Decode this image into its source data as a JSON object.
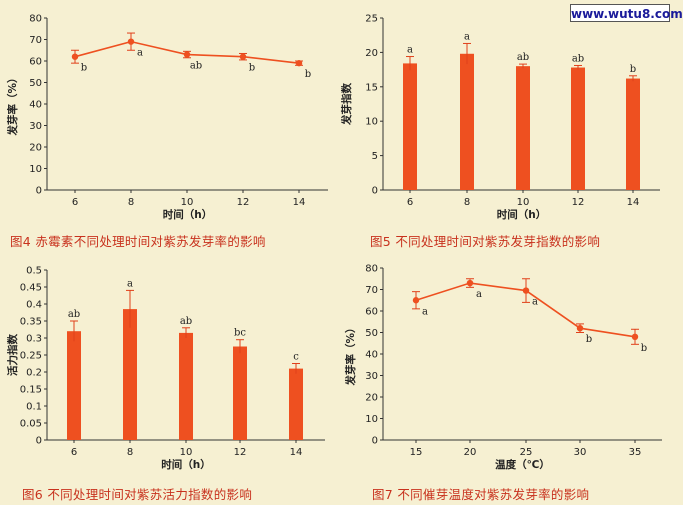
{
  "watermark": "www.wutu8.com",
  "captions": {
    "fig4": "图4  赤霉素不同处理时间对紫苏发芽率的影响",
    "fig5": "图5  不同处理时间对紫苏发芽指数的影响",
    "fig6": "图6  不同处理时间对紫苏活力指数的影响",
    "fig7": "图7  不同催芽温度对紫苏发芽率的影响"
  },
  "chart_data": [
    {
      "id": "fig4",
      "type": "line",
      "x": [
        6,
        8,
        10,
        12,
        14
      ],
      "y": [
        62,
        69,
        63,
        62,
        59
      ],
      "err": [
        3,
        4,
        1.5,
        1.5,
        1
      ],
      "sig": [
        "b",
        "a",
        "ab",
        "b",
        "b"
      ],
      "xlabel": "时间（h）",
      "ylabel": "发芽率（%）",
      "ylim": [
        0,
        80
      ],
      "yticks": [
        "0",
        "10",
        "20",
        "30",
        "40",
        "50",
        "60",
        "70",
        "80"
      ],
      "xticks": [
        "6",
        "8",
        "10",
        "12",
        "14"
      ],
      "colors": {
        "series": "#ee5020"
      }
    },
    {
      "id": "fig5",
      "type": "bar",
      "categories": [
        "6",
        "8",
        "10",
        "12",
        "14"
      ],
      "values": [
        18.4,
        19.8,
        18.0,
        17.8,
        16.2
      ],
      "err": [
        1.0,
        1.5,
        0.3,
        0.3,
        0.4
      ],
      "sig": [
        "a",
        "a",
        "ab",
        "ab",
        "b"
      ],
      "xlabel": "时间（h）",
      "ylabel": "发芽指数",
      "ylim": [
        0,
        25
      ],
      "yticks": [
        "0",
        "5",
        "10",
        "15",
        "20",
        "25"
      ],
      "colors": {
        "bar": "#ee5020"
      }
    },
    {
      "id": "fig6",
      "type": "bar",
      "categories": [
        "6",
        "8",
        "10",
        "12",
        "14"
      ],
      "values": [
        0.32,
        0.385,
        0.315,
        0.275,
        0.21
      ],
      "err": [
        0.03,
        0.055,
        0.015,
        0.02,
        0.015
      ],
      "sig": [
        "ab",
        "a",
        "ab",
        "bc",
        "c"
      ],
      "xlabel": "时间（h）",
      "ylabel": "活力指数",
      "ylim": [
        0,
        0.5
      ],
      "yticks": [
        "0",
        "0.05",
        "0.1",
        "0.15",
        "0.2",
        "0.25",
        "0.3",
        "0.35",
        "0.4",
        "0.45",
        "0.5"
      ],
      "colors": {
        "bar": "#ee5020"
      }
    },
    {
      "id": "fig7",
      "type": "line",
      "x": [
        15,
        20,
        25,
        30,
        35
      ],
      "y": [
        65,
        73,
        69.5,
        52,
        48
      ],
      "err": [
        4,
        2,
        5.5,
        2,
        3.5
      ],
      "sig": [
        "a",
        "a",
        "a",
        "b",
        "b"
      ],
      "xlabel": "温度（℃）",
      "ylabel": "发芽率（%）",
      "ylim": [
        0,
        80
      ],
      "yticks": [
        "0",
        "10",
        "20",
        "30",
        "40",
        "50",
        "60",
        "70",
        "80"
      ],
      "xticks": [
        "15",
        "20",
        "25",
        "30",
        "35"
      ],
      "colors": {
        "series": "#ee5020"
      }
    }
  ]
}
